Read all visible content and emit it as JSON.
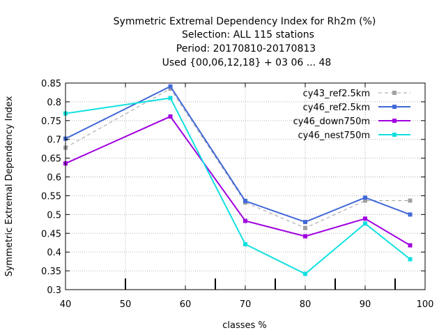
{
  "chart_data": {
    "type": "line",
    "title_lines": [
      "Symmetric Extremal Dependency Index  for Rh2m (%)",
      "Selection: ALL     115 stations",
      "Period: 20170810-20170813",
      "Used {00,06,12,18} + 03 06 ... 48"
    ],
    "xlabel": "classes %",
    "ylabel": "Symmetric Extremal Dependency Index",
    "xlim": [
      40,
      100
    ],
    "ylim": [
      0.3,
      0.85
    ],
    "xticks": [
      "40",
      "50",
      "60",
      "70",
      "80",
      "90",
      "100"
    ],
    "yticks": [
      "0.3",
      "0.35",
      "0.4",
      "0.45",
      "0.5",
      "0.55",
      "0.6",
      "0.65",
      "0.7",
      "0.75",
      "0.8",
      "0.85"
    ],
    "grid": true,
    "legend_position": "top-right",
    "x": [
      40,
      57.5,
      70,
      80,
      90,
      97.5
    ],
    "series": [
      {
        "name": "cy43_ref2.5km",
        "color": "#a0a0a0",
        "dashed": true,
        "values": [
          0.678,
          0.835,
          0.532,
          0.464,
          0.537,
          0.537
        ]
      },
      {
        "name": "cy46_ref2.5km",
        "color": "#4169d8",
        "dashed": false,
        "values": [
          0.702,
          0.841,
          0.536,
          0.48,
          0.545,
          0.5
        ]
      },
      {
        "name": "cy46_down750m",
        "color": "#a000e0",
        "dashed": false,
        "values": [
          0.636,
          0.761,
          0.483,
          0.442,
          0.489,
          0.418
        ]
      },
      {
        "name": "cy46_nest750m",
        "color": "#10e0e0",
        "dashed": false,
        "values": [
          0.769,
          0.81,
          0.421,
          0.342,
          0.476,
          0.381
        ]
      }
    ],
    "class_markers": [
      50,
      65,
      75,
      85,
      95
    ]
  }
}
